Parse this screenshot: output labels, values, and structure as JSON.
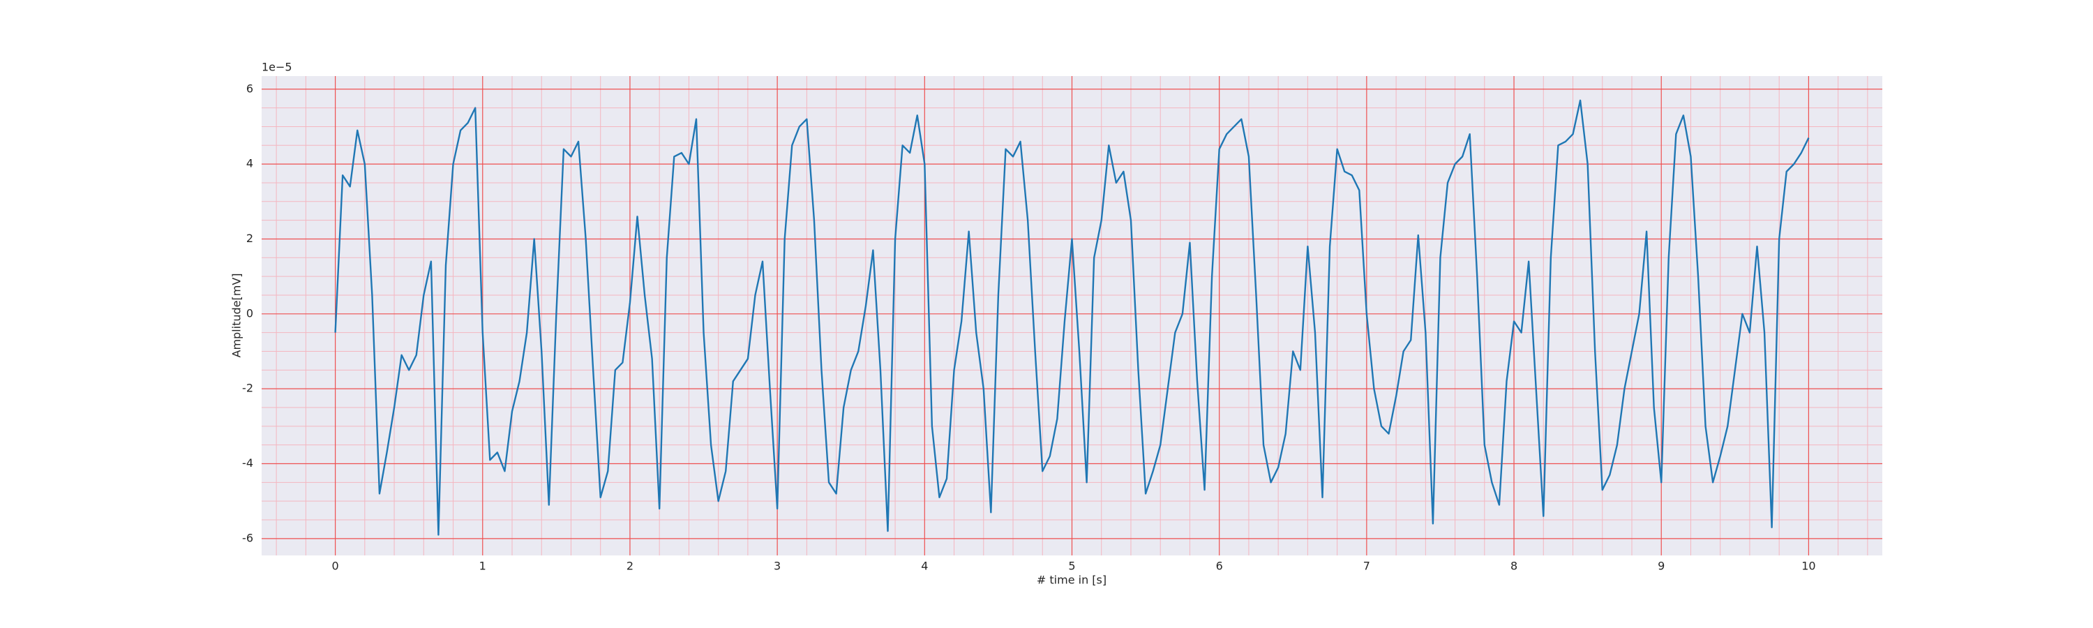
{
  "chart_data": {
    "type": "line",
    "xlabel": "# time in [s]",
    "ylabel": "Amplitude[mV]",
    "y_offset_text": "1e−5",
    "color": "#1f77b4",
    "grid": true,
    "minor_grid": true,
    "xlim": [
      -0.5,
      10.5
    ],
    "ylim": [
      -6.45,
      6.35
    ],
    "xticks": [
      0,
      1,
      2,
      3,
      4,
      5,
      6,
      7,
      8,
      9,
      10
    ],
    "yticks": [
      -6,
      -4,
      -2,
      0,
      2,
      4,
      6
    ],
    "x": [
      0,
      0.05,
      0.1,
      0.15,
      0.2,
      0.25,
      0.3,
      0.35,
      0.4,
      0.45,
      0.5,
      0.55,
      0.6,
      0.65,
      0.7,
      0.75,
      0.8,
      0.85,
      0.9,
      0.95,
      1,
      1.05,
      1.1,
      1.15,
      1.2,
      1.25,
      1.3,
      1.35,
      1.4,
      1.45,
      1.5,
      1.55,
      1.6,
      1.65,
      1.7,
      1.75,
      1.8,
      1.85,
      1.9,
      1.95,
      2,
      2.05,
      2.1,
      2.15,
      2.2,
      2.25,
      2.3,
      2.35,
      2.4,
      2.45,
      2.5,
      2.55,
      2.6,
      2.65,
      2.7,
      2.75,
      2.8,
      2.85,
      2.9,
      2.95,
      3,
      3.05,
      3.1,
      3.15,
      3.2,
      3.25,
      3.3,
      3.35,
      3.4,
      3.45,
      3.5,
      3.55,
      3.6,
      3.65,
      3.7,
      3.75,
      3.8,
      3.85,
      3.9,
      3.95,
      4,
      4.05,
      4.1,
      4.15,
      4.2,
      4.25,
      4.3,
      4.35,
      4.4,
      4.45,
      4.5,
      4.55,
      4.6,
      4.65,
      4.7,
      4.75,
      4.8,
      4.85,
      4.9,
      4.95,
      5,
      5.05,
      5.1,
      5.15,
      5.2,
      5.25,
      5.3,
      5.35,
      5.4,
      5.45,
      5.5,
      5.55,
      5.6,
      5.65,
      5.7,
      5.75,
      5.8,
      5.85,
      5.9,
      5.95,
      6,
      6.05,
      6.1,
      6.15,
      6.2,
      6.25,
      6.3,
      6.35,
      6.4,
      6.45,
      6.5,
      6.55,
      6.6,
      6.65,
      6.7,
      6.75,
      6.8,
      6.85,
      6.9,
      6.95,
      7,
      7.05,
      7.1,
      7.15,
      7.2,
      7.25,
      7.3,
      7.35,
      7.4,
      7.45,
      7.5,
      7.55,
      7.6,
      7.65,
      7.7,
      7.75,
      7.8,
      7.85,
      7.9,
      7.95,
      8,
      8.05,
      8.1,
      8.15,
      8.2,
      8.25,
      8.3,
      8.35,
      8.4,
      8.45,
      8.5,
      8.55,
      8.6,
      8.65,
      8.7,
      8.75,
      8.8,
      8.85,
      8.9,
      8.95,
      9,
      9.05,
      9.1,
      9.15,
      9.2,
      9.25,
      9.3,
      9.35,
      9.4,
      9.45,
      9.5,
      9.55,
      9.6,
      9.65,
      9.7,
      9.75,
      9.8,
      9.85,
      9.9,
      9.95,
      10
    ],
    "values": [
      -0.5,
      3.7,
      3.4,
      4.9,
      4.0,
      0.5,
      -4.8,
      -3.7,
      -2.5,
      -1.1,
      -1.5,
      -1.1,
      0.5,
      1.4,
      -5.9,
      1.3,
      4.0,
      4.9,
      5.1,
      5.5,
      -0.5,
      -3.9,
      -3.7,
      -4.2,
      -2.6,
      -1.8,
      -0.5,
      2.0,
      -1.0,
      -5.1,
      0.0,
      4.4,
      4.2,
      4.6,
      2.0,
      -1.5,
      -4.9,
      -4.2,
      -1.5,
      -1.3,
      0.3,
      2.6,
      0.5,
      -1.2,
      -5.2,
      1.5,
      4.2,
      4.3,
      4.0,
      5.2,
      -0.5,
      -3.5,
      -5.0,
      -4.2,
      -1.8,
      -1.5,
      -1.2,
      0.5,
      1.4,
      -2.0,
      -5.2,
      2.0,
      4.5,
      5.0,
      5.2,
      2.5,
      -1.5,
      -4.5,
      -4.8,
      -2.5,
      -1.5,
      -1.0,
      0.2,
      1.7,
      -1.5,
      -5.8,
      2.0,
      4.5,
      4.3,
      5.3,
      4.0,
      -3.0,
      -4.9,
      -4.4,
      -1.5,
      -0.2,
      2.2,
      -0.5,
      -2.0,
      -5.3,
      0.5,
      4.4,
      4.2,
      4.6,
      2.5,
      -1.0,
      -4.2,
      -3.8,
      -2.8,
      -0.2,
      2.0,
      -1.0,
      -4.5,
      1.5,
      2.5,
      4.5,
      3.5,
      3.8,
      2.5,
      -1.5,
      -4.8,
      -4.2,
      -3.5,
      -2.0,
      -0.5,
      0.0,
      1.9,
      -1.8,
      -4.7,
      1.0,
      4.4,
      4.8,
      5.0,
      5.2,
      4.2,
      0.5,
      -3.5,
      -4.5,
      -4.1,
      -3.2,
      -1.0,
      -1.5,
      1.8,
      -0.5,
      -4.9,
      1.8,
      4.4,
      3.8,
      3.7,
      3.3,
      0.0,
      -2.0,
      -3.0,
      -3.2,
      -2.2,
      -1.0,
      -0.7,
      2.1,
      -0.5,
      -5.6,
      1.5,
      3.5,
      4.0,
      4.2,
      4.8,
      1.0,
      -3.5,
      -4.5,
      -5.1,
      -1.8,
      -0.2,
      -0.5,
      1.4,
      -2.0,
      -5.4,
      1.5,
      4.5,
      4.6,
      4.8,
      5.7,
      4.0,
      -1.0,
      -4.7,
      -4.3,
      -3.5,
      -2.0,
      -1.0,
      0.0,
      2.2,
      -2.5,
      -4.5,
      1.5,
      4.8,
      5.3,
      4.2,
      1.0,
      -3.0,
      -4.5,
      -3.8,
      -3.0,
      -1.5,
      0.0,
      -0.5,
      1.8,
      -0.5,
      -5.7,
      2.0,
      3.8,
      4.0,
      4.3,
      4.7
    ]
  }
}
